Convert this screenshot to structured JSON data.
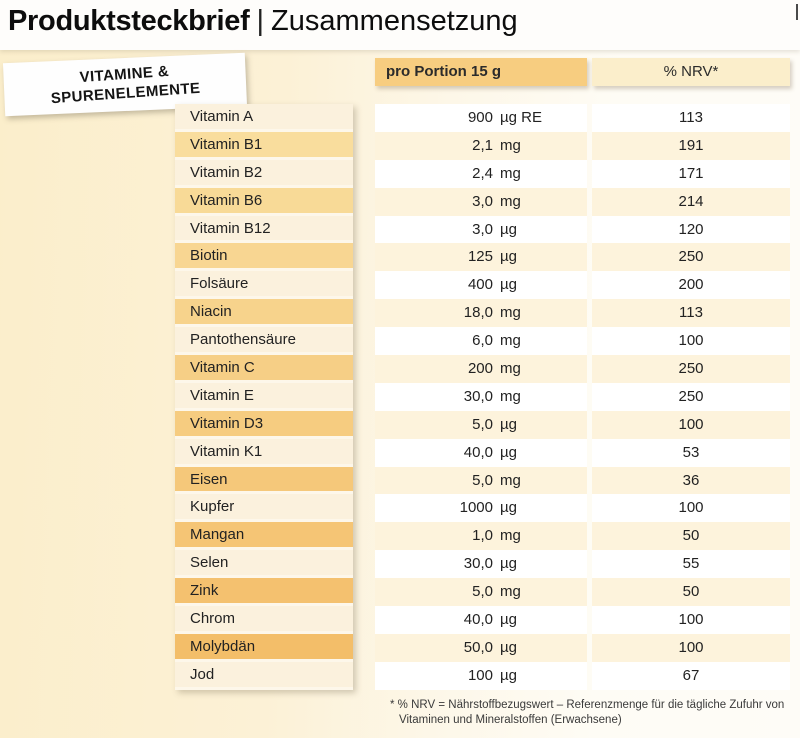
{
  "page": {
    "title_bold": "Produktsteckbrief",
    "title_separator": "|",
    "title_regular": "Zusammensetzung"
  },
  "category_badge": {
    "line1": "VITAMINE &",
    "line2": "SPURENELEMENTE"
  },
  "table": {
    "headers": {
      "portion": "pro Portion 15 g",
      "nrv": "% NRV*"
    },
    "rows": [
      {
        "name": "Vitamin A",
        "amount": "900",
        "unit": "µg RE",
        "nrv": "113"
      },
      {
        "name": "Vitamin B1",
        "amount": "2,1",
        "unit": "mg",
        "nrv": "191"
      },
      {
        "name": "Vitamin B2",
        "amount": "2,4",
        "unit": "mg",
        "nrv": "171"
      },
      {
        "name": "Vitamin B6",
        "amount": "3,0",
        "unit": "mg",
        "nrv": "214"
      },
      {
        "name": "Vitamin B12",
        "amount": "3,0",
        "unit": "µg",
        "nrv": "120"
      },
      {
        "name": "Biotin",
        "amount": "125",
        "unit": "µg",
        "nrv": "250"
      },
      {
        "name": "Folsäure",
        "amount": "400",
        "unit": "µg",
        "nrv": "200"
      },
      {
        "name": "Niacin",
        "amount": "18,0",
        "unit": "mg",
        "nrv": "113"
      },
      {
        "name": "Pantothensäure",
        "amount": "6,0",
        "unit": "mg",
        "nrv": "100"
      },
      {
        "name": "Vitamin C",
        "amount": "200",
        "unit": "mg",
        "nrv": "250"
      },
      {
        "name": "Vitamin E",
        "amount": "30,0",
        "unit": "mg",
        "nrv": "250"
      },
      {
        "name": "Vitamin D3",
        "amount": "5,0",
        "unit": "µg",
        "nrv": "100"
      },
      {
        "name": "Vitamin K1",
        "amount": "40,0",
        "unit": "µg",
        "nrv": "53"
      },
      {
        "name": "Eisen",
        "amount": "5,0",
        "unit": "mg",
        "nrv": "36"
      },
      {
        "name": "Kupfer",
        "amount": "1000",
        "unit": "µg",
        "nrv": "100"
      },
      {
        "name": "Mangan",
        "amount": "1,0",
        "unit": "mg",
        "nrv": "50"
      },
      {
        "name": "Selen",
        "amount": "30,0",
        "unit": "µg",
        "nrv": "55"
      },
      {
        "name": "Zink",
        "amount": "5,0",
        "unit": "mg",
        "nrv": "50"
      },
      {
        "name": "Chrom",
        "amount": "40,0",
        "unit": "µg",
        "nrv": "100"
      },
      {
        "name": "Molybdän",
        "amount": "50,0",
        "unit": "µg",
        "nrv": "100"
      },
      {
        "name": "Jod",
        "amount": "100",
        "unit": "µg",
        "nrv": "67"
      }
    ]
  },
  "footnote": {
    "line1": "* % NRV = Nährstoffbezugswert – Referenzmenge für die tägliche Zufuhr von",
    "line2": "Vitaminen und Mineralstoffen (Erwachsene)"
  },
  "colors": {
    "header_portion_bg": "#f7cd80",
    "header_nrv_bg": "#fbeecb",
    "value_row_cream": "#fdf3dc",
    "label_row_light": "#fbf1dd",
    "label_row_dark_top": "#f9dfa0",
    "label_row_dark_bottom": "#f3bc66"
  }
}
